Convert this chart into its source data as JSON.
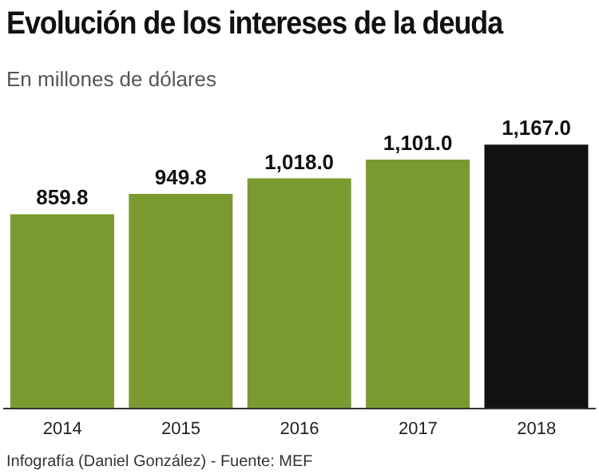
{
  "chart_data": {
    "type": "bar",
    "title": "Evolución de los intereses de la deuda",
    "subtitle": "En millones de dólares",
    "categories": [
      "2014",
      "2015",
      "2016",
      "2017",
      "2018"
    ],
    "values": [
      859.8,
      949.8,
      1018.0,
      1101.0,
      1167.0
    ],
    "value_labels": [
      "859.8",
      "949.8",
      "1,018.0",
      "1,101.0",
      "1,167.0"
    ],
    "colors": [
      "#7a9a2f",
      "#7a9a2f",
      "#7a9a2f",
      "#7a9a2f",
      "#111111"
    ],
    "tick_labels": "x",
    "annotations": [
      "Infografía (Daniel González) - Fuente: MEF"
    ]
  }
}
